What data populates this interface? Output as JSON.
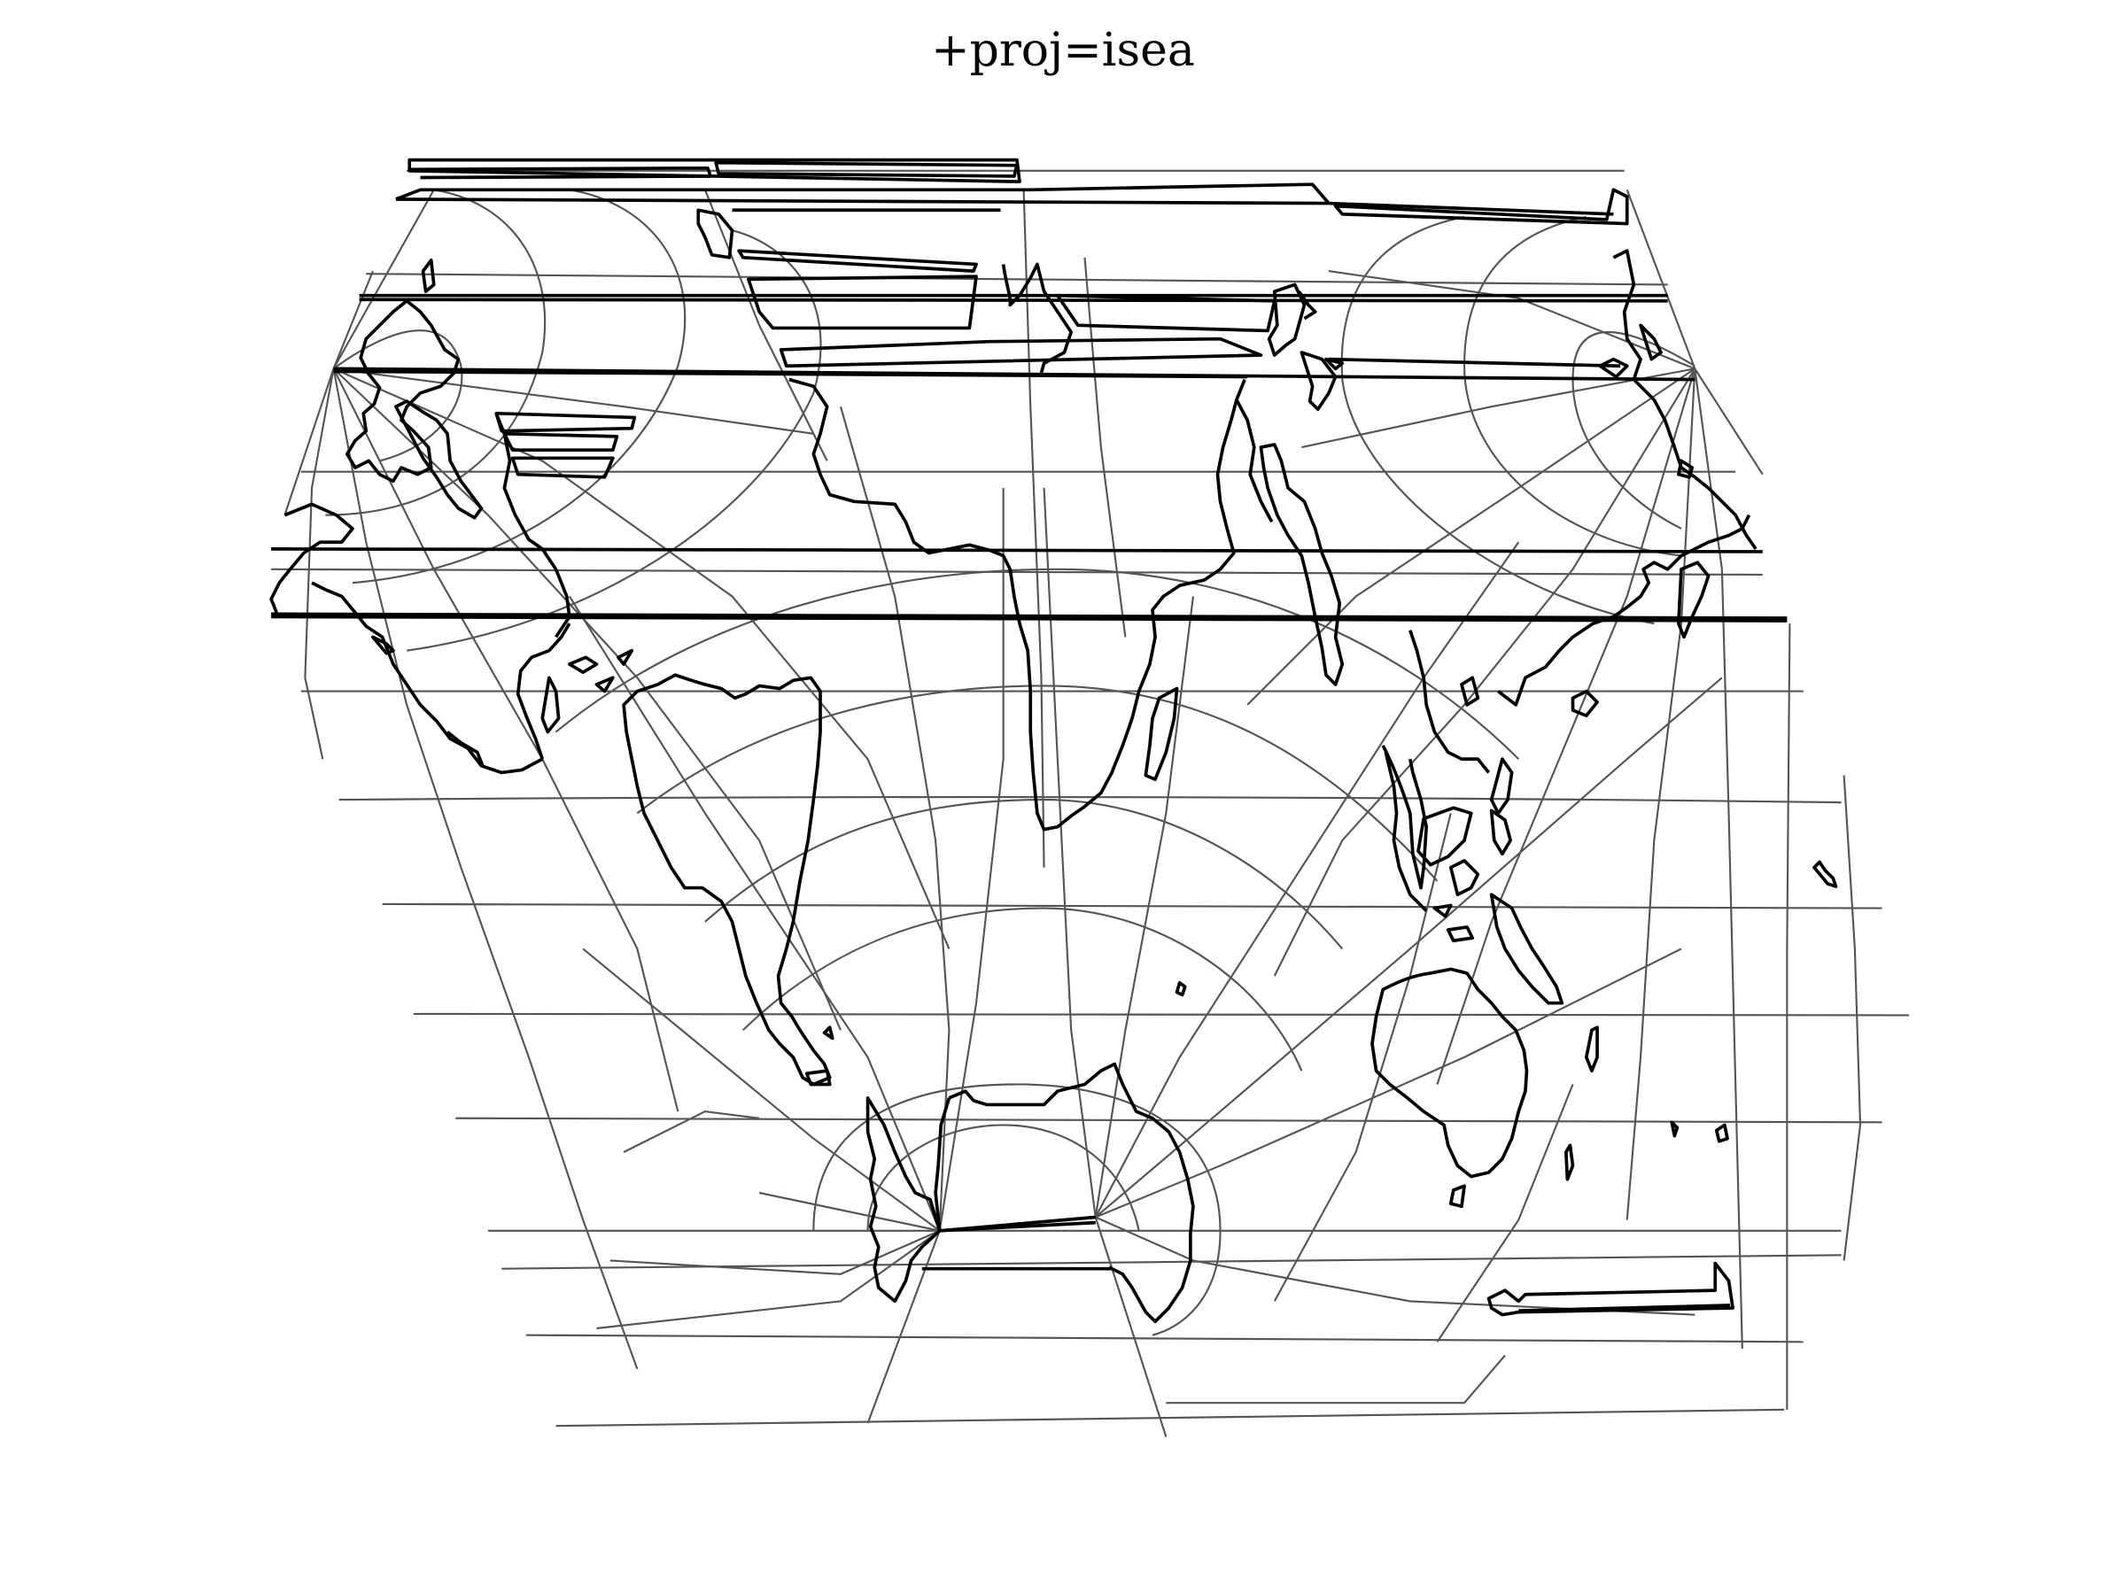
{
  "title": "+proj=isea",
  "colors": {
    "background": "#ffffff",
    "coastline": "#000000",
    "graticule": "#555555"
  },
  "map": {
    "projection": "isea",
    "layers": [
      "coastlines",
      "graticule"
    ]
  }
}
